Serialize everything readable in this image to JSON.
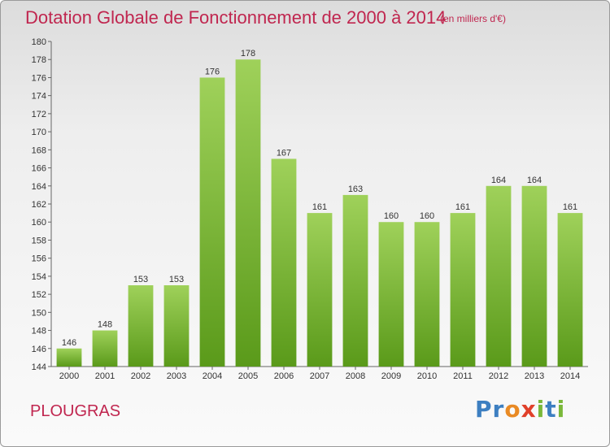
{
  "header": {
    "title": "Dotation Globale de Fonctionnement de 2000 à 2014",
    "subtitle": "(en milliers d'€)"
  },
  "footer": {
    "commune": "PLOUGRAS",
    "logo_letters": [
      {
        "ch": "P",
        "color": "#3d7fc1"
      },
      {
        "ch": "r",
        "color": "#3d7fc1"
      },
      {
        "ch": "o",
        "color": "#e98a24"
      },
      {
        "ch": "x",
        "color": "#e0402a"
      },
      {
        "ch": "i",
        "color": "#7ab83a"
      },
      {
        "ch": "t",
        "color": "#3d7fc1"
      },
      {
        "ch": "i",
        "color": "#7ab83a"
      }
    ]
  },
  "chart_data": {
    "type": "bar",
    "title": "Dotation Globale de Fonctionnement de 2000 à 2014",
    "subtitle": "(en milliers d'€)",
    "categories": [
      "2000",
      "2001",
      "2002",
      "2003",
      "2004",
      "2005",
      "2006",
      "2007",
      "2008",
      "2009",
      "2010",
      "2011",
      "2012",
      "2013",
      "2014"
    ],
    "values": [
      146,
      148,
      153,
      153,
      176,
      178,
      167,
      161,
      163,
      160,
      160,
      161,
      164,
      164,
      161
    ],
    "ylim": [
      144,
      180
    ],
    "ytick_step": 2,
    "grid": false,
    "bar_color_top": "#9fd15a",
    "bar_color_bottom": "#5a9a1a",
    "data_labels": true
  }
}
